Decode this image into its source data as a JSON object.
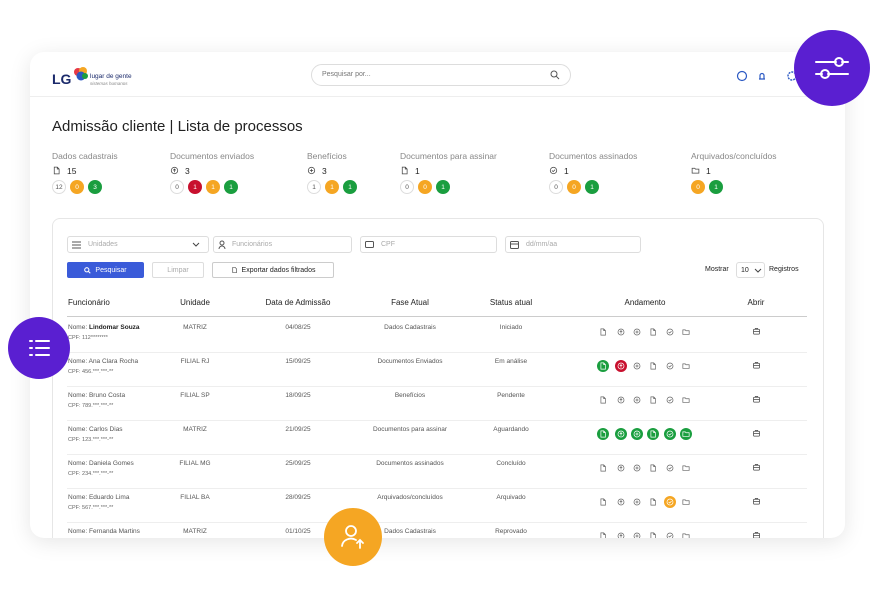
{
  "header": {
    "logo": "LG",
    "brand": "lugar de gente",
    "tagline": "sistemas humanos",
    "search_placeholder": "Pesquisar por..."
  },
  "page_title": "Admissão cliente | Lista de processos",
  "stages": [
    {
      "label": "Dados cadastrais",
      "icon": "doc",
      "count": 15,
      "badges": [
        {
          "value": 12,
          "color": "white"
        },
        {
          "value": 0,
          "color": "orange"
        },
        {
          "value": 3,
          "color": "green"
        }
      ]
    },
    {
      "label": "Documentos enviados",
      "icon": "upload",
      "count": 3,
      "badges": [
        {
          "value": 0,
          "color": "white"
        },
        {
          "value": 1,
          "color": "red"
        },
        {
          "value": 1,
          "color": "orange"
        },
        {
          "value": 1,
          "color": "green"
        }
      ]
    },
    {
      "label": "Benefícios",
      "icon": "plus",
      "count": 3,
      "badges": [
        {
          "value": 1,
          "color": "white"
        },
        {
          "value": 1,
          "color": "orange"
        },
        {
          "value": 1,
          "color": "green"
        }
      ]
    },
    {
      "label": "Documentos para assinar",
      "icon": "doc",
      "count": 1,
      "badges": [
        {
          "value": 0,
          "color": "white"
        },
        {
          "value": 0,
          "color": "orange"
        },
        {
          "value": 1,
          "color": "green"
        }
      ]
    },
    {
      "label": "Documentos assinados",
      "icon": "check",
      "count": 1,
      "badges": [
        {
          "value": 0,
          "color": "white"
        },
        {
          "value": 0,
          "color": "orange"
        },
        {
          "value": 1,
          "color": "green"
        }
      ]
    },
    {
      "label": "Arquivados/concluídos",
      "icon": "folder",
      "count": 1,
      "badges": [
        {
          "value": 0,
          "color": "orange"
        },
        {
          "value": 1,
          "color": "green"
        }
      ]
    }
  ],
  "filters": {
    "units": "Unidades",
    "employees": "Funcionários",
    "cpf": "CPF",
    "date": "dd/mm/aa"
  },
  "buttons": {
    "search": "Pesquisar",
    "clear": "Limpar",
    "export": "Exportar dados filtrados"
  },
  "pagination": {
    "show": "Mostrar",
    "page_size": 10,
    "records": "Registros"
  },
  "table": {
    "columns": [
      "Funcionário",
      "Unidade",
      "Data de Admissão",
      "Fase Atual",
      "Status atual",
      "Andamento",
      "Abrir"
    ],
    "name_label": "Nome:",
    "rows": [
      {
        "name": "Lindomar Souza",
        "bold": true,
        "cpf": "CPF: 112********",
        "unit": "MATRIZ",
        "admission_date": "04/08/25",
        "phase": "Dados Cadastrais",
        "status": "Iniciado",
        "progress": [
          "pending",
          "pending",
          "pending",
          "pending",
          "pending",
          "pending"
        ]
      },
      {
        "name": "Ana Clara Rocha",
        "cpf": "CPF: 456.***.***-**",
        "unit": "FILIAL RJ",
        "admission_date": "15/09/25",
        "phase": "Documentos Enviados",
        "status": "Em análise",
        "progress": [
          "done",
          "error",
          "pending",
          "pending",
          "pending",
          "pending"
        ]
      },
      {
        "name": "Bruno Costa",
        "cpf": "CPF: 789.***.***-**",
        "unit": "FILIAL SP",
        "admission_date": "18/09/25",
        "phase": "Benefícios",
        "status": "Pendente",
        "progress": [
          "pending",
          "pending",
          "pending",
          "pending",
          "pending",
          "pending"
        ]
      },
      {
        "name": "Carlos Dias",
        "cpf": "CPF: 123.***.***-**",
        "unit": "MATRIZ",
        "admission_date": "21/09/25",
        "phase": "Documentos para assinar",
        "status": "Aguardando",
        "progress": [
          "done",
          "done",
          "done",
          "done",
          "done",
          "done"
        ]
      },
      {
        "name": "Daniela Gomes",
        "cpf": "CPF: 234.***.***-**",
        "unit": "FILIAL MG",
        "admission_date": "25/09/25",
        "phase": "Documentos assinados",
        "status": "Concluído",
        "progress": [
          "pending",
          "pending",
          "pending",
          "pending",
          "pending",
          "pending"
        ]
      },
      {
        "name": "Eduardo Lima",
        "cpf": "CPF: 567.***.***-**",
        "unit": "FILIAL BA",
        "admission_date": "28/09/25",
        "phase": "Arquivados/concluídos",
        "status": "Arquivado",
        "progress": [
          "pending",
          "pending",
          "pending",
          "pending",
          "warning",
          "pending"
        ]
      },
      {
        "name": "Fernanda Martins",
        "unit": "MATRIZ",
        "admission_date": "01/10/25",
        "phase": "Dados Cadastrais",
        "status": "Reprovado",
        "progress": [
          "pending",
          "pending",
          "pending",
          "pending",
          "pending",
          "pending"
        ]
      }
    ]
  }
}
